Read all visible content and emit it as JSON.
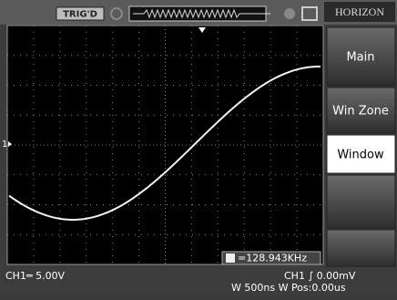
{
  "status": {
    "trigger": "TRIG'D",
    "menu_title": "HORIZON"
  },
  "menu": {
    "items": [
      "Main",
      "Win Zone",
      "Window"
    ],
    "selected": 2
  },
  "screen": {
    "channel_marker": "1",
    "frequency": "=128.943KHz"
  },
  "footer": {
    "ch1_scale": "CH1═ 5.00V",
    "trigger_level": "CH1 ∫ 0.00mV",
    "timebase": "W 500ns W Pos:0.00us"
  }
}
